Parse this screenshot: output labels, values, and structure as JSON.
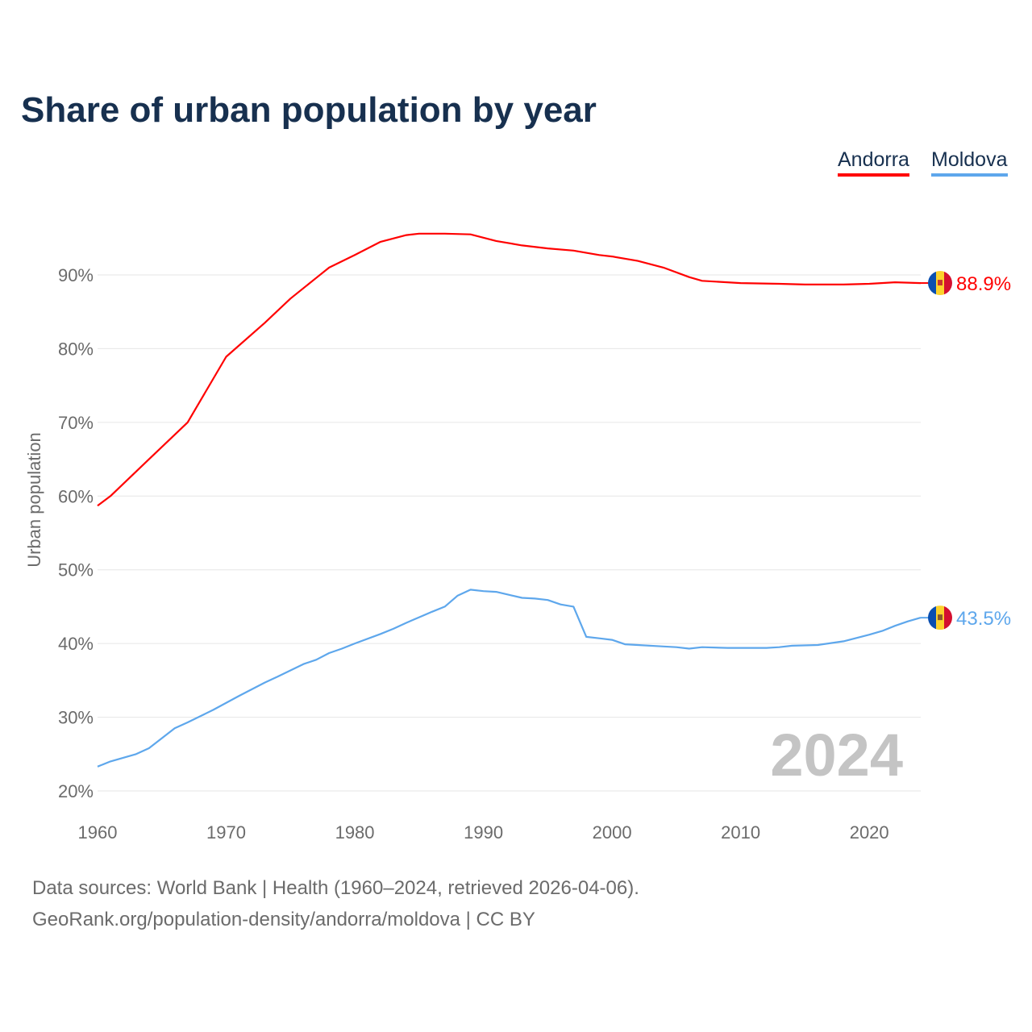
{
  "chart_data": {
    "type": "line",
    "title": "Share of urban population by year",
    "ylabel": "Urban population",
    "xlabel": "",
    "xlim": [
      1960,
      2024
    ],
    "ylim": [
      20,
      96
    ],
    "y_ticks": [
      20,
      30,
      40,
      50,
      60,
      70,
      80,
      90
    ],
    "y_tick_labels": [
      "20%",
      "30%",
      "40%",
      "50%",
      "60%",
      "70%",
      "80%",
      "90%"
    ],
    "x_ticks": [
      1960,
      1970,
      1980,
      1990,
      2000,
      2010,
      2020
    ],
    "x_tick_labels": [
      "1960",
      "1970",
      "1980",
      "1990",
      "2000",
      "2010",
      "2020"
    ],
    "grid": true,
    "legend_position": "top-right",
    "year_watermark": "2024",
    "series": [
      {
        "name": "Andorra",
        "color": "#ff0000",
        "end_label": "88.9%",
        "x": [
          1960,
          1961,
          1964,
          1967,
          1970,
          1973,
          1975,
          1977,
          1978,
          1980,
          1982,
          1984,
          1985,
          1987,
          1989,
          1991,
          1993,
          1995,
          1997,
          1999,
          2000,
          2002,
          2004,
          2006,
          2007,
          2010,
          2013,
          2015,
          2018,
          2020,
          2022,
          2024
        ],
        "y": [
          58.7,
          60.0,
          65.0,
          70.0,
          78.9,
          83.5,
          86.8,
          89.6,
          91.0,
          92.7,
          94.5,
          95.4,
          95.6,
          95.6,
          95.5,
          94.6,
          94.0,
          93.6,
          93.3,
          92.7,
          92.5,
          91.9,
          91.0,
          89.7,
          89.2,
          88.9,
          88.8,
          88.7,
          88.7,
          88.8,
          89.0,
          88.9
        ]
      },
      {
        "name": "Moldova",
        "color": "#5ea7ec",
        "end_label": "43.5%",
        "x": [
          1960,
          1961,
          1963,
          1964,
          1966,
          1967,
          1969,
          1971,
          1973,
          1974,
          1976,
          1977,
          1978,
          1979,
          1980,
          1982,
          1983,
          1984,
          1986,
          1987,
          1988,
          1989,
          1990,
          1991,
          1992,
          1993,
          1994,
          1995,
          1996,
          1997,
          1998,
          1999,
          2000,
          2001,
          2002,
          2004,
          2005,
          2006,
          2007,
          2009,
          2012,
          2013,
          2014,
          2016,
          2018,
          2020,
          2021,
          2022,
          2023,
          2024
        ],
        "y": [
          23.3,
          24.0,
          25.0,
          25.8,
          28.5,
          29.3,
          31.0,
          32.9,
          34.7,
          35.5,
          37.2,
          37.8,
          38.7,
          39.3,
          40.0,
          41.3,
          42.0,
          42.8,
          44.3,
          45.0,
          46.5,
          47.3,
          47.1,
          47.0,
          46.6,
          46.2,
          46.1,
          45.9,
          45.3,
          45.0,
          40.9,
          40.7,
          40.5,
          39.9,
          39.8,
          39.6,
          39.5,
          39.3,
          39.5,
          39.4,
          39.4,
          39.5,
          39.7,
          39.8,
          40.3,
          41.2,
          41.7,
          42.4,
          43.0,
          43.5
        ]
      }
    ]
  },
  "footer": {
    "line1": "Data sources: World Bank | Health (1960–2024, retrieved 2026-04-06).",
    "line2": "GeoRank.org/population-density/andorra/moldova | CC BY"
  }
}
